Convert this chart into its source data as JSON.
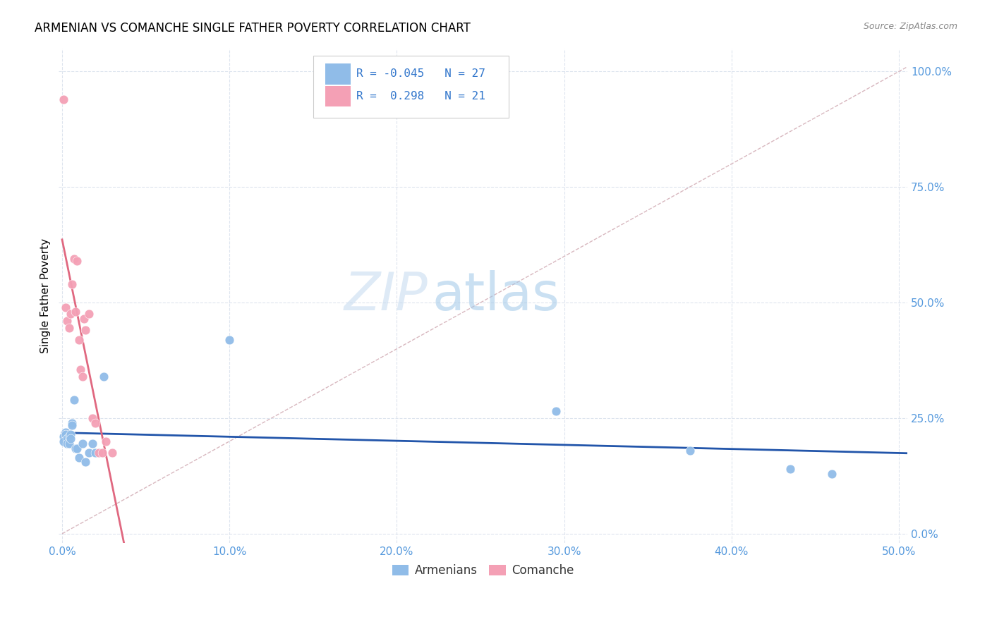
{
  "title": "ARMENIAN VS COMANCHE SINGLE FATHER POVERTY CORRELATION CHART",
  "source": "Source: ZipAtlas.com",
  "xlabel_vals": [
    0,
    0.1,
    0.2,
    0.3,
    0.4,
    0.5
  ],
  "ylabel_vals": [
    0,
    0.25,
    0.5,
    0.75,
    1.0
  ],
  "xlim": [
    -0.002,
    0.505
  ],
  "ylim": [
    -0.02,
    1.05
  ],
  "armenian_color": "#90bce8",
  "comanche_color": "#f4a0b5",
  "armenian_line_color": "#2255aa",
  "comanche_line_color": "#e06880",
  "diagonal_color": "#d4b0b8",
  "R_armenian": -0.045,
  "N_armenian": 27,
  "R_comanche": 0.298,
  "N_comanche": 21,
  "armenian_x": [
    0.001,
    0.001,
    0.002,
    0.002,
    0.003,
    0.003,
    0.004,
    0.004,
    0.005,
    0.005,
    0.006,
    0.006,
    0.007,
    0.008,
    0.009,
    0.01,
    0.012,
    0.014,
    0.016,
    0.018,
    0.02,
    0.025,
    0.1,
    0.295,
    0.375,
    0.435,
    0.46
  ],
  "armenian_y": [
    0.21,
    0.2,
    0.22,
    0.215,
    0.205,
    0.195,
    0.21,
    0.195,
    0.215,
    0.205,
    0.24,
    0.235,
    0.29,
    0.185,
    0.185,
    0.165,
    0.195,
    0.155,
    0.175,
    0.195,
    0.175,
    0.34,
    0.42,
    0.265,
    0.18,
    0.14,
    0.13
  ],
  "comanche_x": [
    0.001,
    0.002,
    0.003,
    0.004,
    0.005,
    0.006,
    0.007,
    0.008,
    0.009,
    0.01,
    0.011,
    0.012,
    0.013,
    0.014,
    0.016,
    0.018,
    0.02,
    0.022,
    0.024,
    0.026,
    0.03
  ],
  "comanche_y": [
    0.94,
    0.49,
    0.46,
    0.445,
    0.475,
    0.54,
    0.595,
    0.48,
    0.59,
    0.42,
    0.355,
    0.34,
    0.465,
    0.44,
    0.475,
    0.25,
    0.24,
    0.175,
    0.175,
    0.2,
    0.175
  ],
  "watermark_text": "ZIPatlas",
  "marker_size": 85,
  "grid_color": "#dde4ee",
  "axis_label": "Single Father Poverty",
  "background_color": "#ffffff",
  "tick_color": "#5599dd",
  "title_fontsize": 12,
  "source_fontsize": 9,
  "legend_bottom_labels": [
    "Armenians",
    "Comanche"
  ]
}
